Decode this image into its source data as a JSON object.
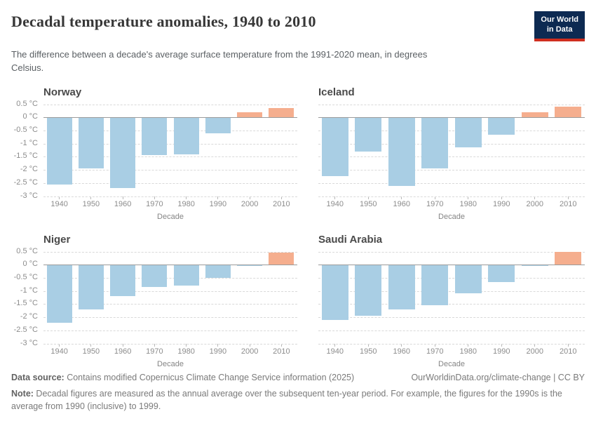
{
  "header": {
    "title": "Decadal temperature anomalies, 1940 to 2010",
    "subtitle": "The difference between a decade's average surface temperature from the 1991-2020 mean, in degrees Celsius.",
    "logo": {
      "line1": "Our World",
      "line2": "in Data"
    }
  },
  "axis": {
    "xlabel": "Decade",
    "yticks": [
      0.5,
      0,
      -0.5,
      -1,
      -1.5,
      -2,
      -2.5,
      -3
    ],
    "ytick_labels": [
      "0.5 °C",
      "0 °C",
      "-0.5 °C",
      "-1 °C",
      "-1.5 °C",
      "-2 °C",
      "-2.5 °C",
      "-3 °C"
    ],
    "ylim": [
      -3,
      0.5
    ],
    "grid": "dashed"
  },
  "chart_data": [
    {
      "type": "bar",
      "title": "Norway",
      "categories": [
        "1940",
        "1950",
        "1960",
        "1970",
        "1980",
        "1990",
        "2000",
        "2010"
      ],
      "values": [
        -2.55,
        -1.95,
        -2.7,
        -1.45,
        -1.4,
        -0.6,
        0.2,
        0.35
      ],
      "xlabel": "Decade",
      "ylabel": "",
      "ylim": [
        -3,
        0.5
      ],
      "show_y_axis": true
    },
    {
      "type": "bar",
      "title": "Iceland",
      "categories": [
        "1940",
        "1950",
        "1960",
        "1970",
        "1980",
        "1990",
        "2000",
        "2010"
      ],
      "values": [
        -2.25,
        -1.3,
        -2.6,
        -1.95,
        -1.15,
        -0.65,
        0.2,
        0.4
      ],
      "xlabel": "Decade",
      "ylabel": "",
      "ylim": [
        -3,
        0.5
      ],
      "show_y_axis": false
    },
    {
      "type": "bar",
      "title": "Niger",
      "categories": [
        "1940",
        "1950",
        "1960",
        "1970",
        "1980",
        "1990",
        "2000",
        "2010"
      ],
      "values": [
        -2.2,
        -1.7,
        -1.2,
        -0.85,
        -0.8,
        -0.5,
        -0.05,
        0.45
      ],
      "xlabel": "Decade",
      "ylabel": "",
      "ylim": [
        -3,
        0.5
      ],
      "show_y_axis": true
    },
    {
      "type": "bar",
      "title": "Saudi Arabia",
      "categories": [
        "1940",
        "1950",
        "1960",
        "1970",
        "1980",
        "1990",
        "2000",
        "2010"
      ],
      "values": [
        -2.1,
        -1.95,
        -1.7,
        -1.55,
        -1.1,
        -0.65,
        -0.02,
        0.5
      ],
      "xlabel": "Decade",
      "ylabel": "",
      "ylim": [
        -3,
        0.5
      ],
      "show_y_axis": false
    }
  ],
  "colors": {
    "positive_bar": "#f5ae8e",
    "negative_bar": "#a9cee4",
    "logo_bg": "#0d2a52",
    "logo_stripe": "#cf2e1f"
  },
  "footer": {
    "datasource_label": "Data source:",
    "datasource_text": " Contains modified Copernicus Climate Change Service information (2025)",
    "link": "OurWorldinData.org/climate-change | CC BY",
    "note_label": "Note:",
    "note_text": " Decadal figures are measured as the annual average over the subsequent ten-year period. For example, the figures for the 1990s is the average from 1990 (inclusive) to 1999."
  }
}
